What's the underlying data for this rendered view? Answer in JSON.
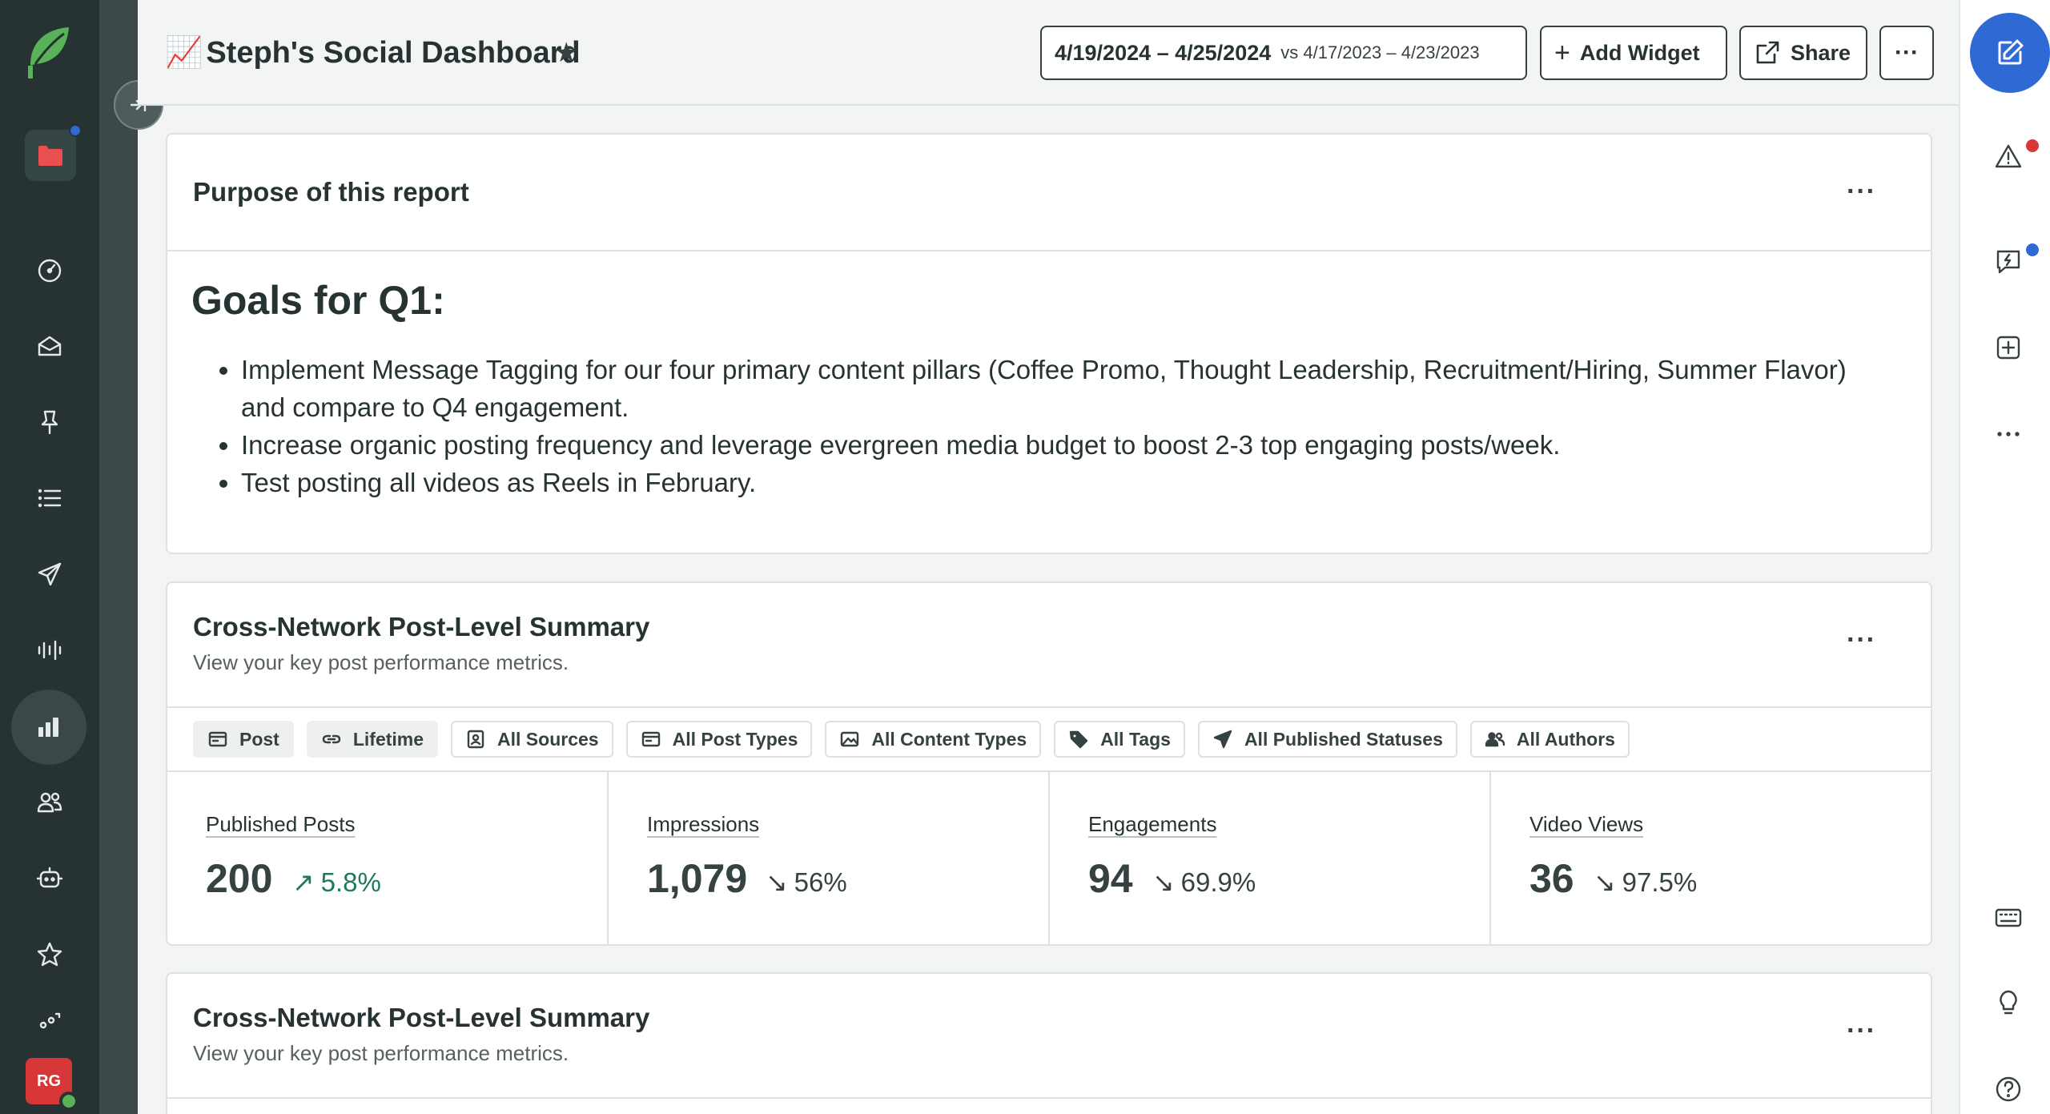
{
  "header": {
    "title_emoji": "📈",
    "title": "Steph's Social Dashboard",
    "date_range": "4/19/2024 – 4/25/2024",
    "vs_label": "vs 4/17/2023 – 4/23/2023",
    "add_widget_label": "Add Widget",
    "share_label": "Share",
    "more_label": "···"
  },
  "leftnav": {
    "items": [
      "folder-icon",
      "dashboard-icon",
      "inbox-icon",
      "pin-icon",
      "list-icon",
      "send-icon",
      "listening-icon",
      "reports-icon",
      "people-icon",
      "bot-icon",
      "star-icon",
      "more-icon"
    ],
    "active": "reports-icon",
    "avatar_initials": "RG"
  },
  "purpose_card": {
    "title": "Purpose of this report",
    "more": "···",
    "heading": "Goals for Q1:",
    "bullets": [
      "Implement Message Tagging for our four primary content pillars (Coffee Promo, Thought Leadership, Recruitment/Hiring, Summer Flavor) and compare to Q4 engagement.",
      "Increase organic posting frequency and leverage evergreen media budget to boost 2-3 top engaging posts/week.",
      "Test posting all videos as Reels in February."
    ]
  },
  "summary_card": {
    "title": "Cross-Network Post-Level Summary",
    "subtitle": "View your key post performance metrics.",
    "more": "···",
    "filters": [
      {
        "label": "Post",
        "icon": "card-icon"
      },
      {
        "label": "Lifetime",
        "icon": "link-icon"
      },
      {
        "label": "All Sources",
        "icon": "profile-icon"
      },
      {
        "label": "All Post Types",
        "icon": "card-icon"
      },
      {
        "label": "All Content Types",
        "icon": "image-icon"
      },
      {
        "label": "All Tags",
        "icon": "tag-icon"
      },
      {
        "label": "All Published Statuses",
        "icon": "send-icon"
      },
      {
        "label": "All Authors",
        "icon": "people-icon"
      }
    ],
    "metrics": [
      {
        "label": "Published Posts",
        "value": "200",
        "change": "5.8%",
        "direction": "up"
      },
      {
        "label": "Impressions",
        "value": "1,079",
        "change": "56%",
        "direction": "down"
      },
      {
        "label": "Engagements",
        "value": "94",
        "change": "69.9%",
        "direction": "down"
      },
      {
        "label": "Video Views",
        "value": "36",
        "change": "97.5%",
        "direction": "down"
      }
    ]
  },
  "summary_card_2": {
    "title": "Cross-Network Post-Level Summary",
    "subtitle": "View your key post performance metrics.",
    "more": "···"
  },
  "colors": {
    "nav_bg": "#273333",
    "accent_blue": "#2f6ad4",
    "logo_green": "#59b257",
    "alert_red": "#d73737",
    "positive_green": "#1f7a5a"
  }
}
